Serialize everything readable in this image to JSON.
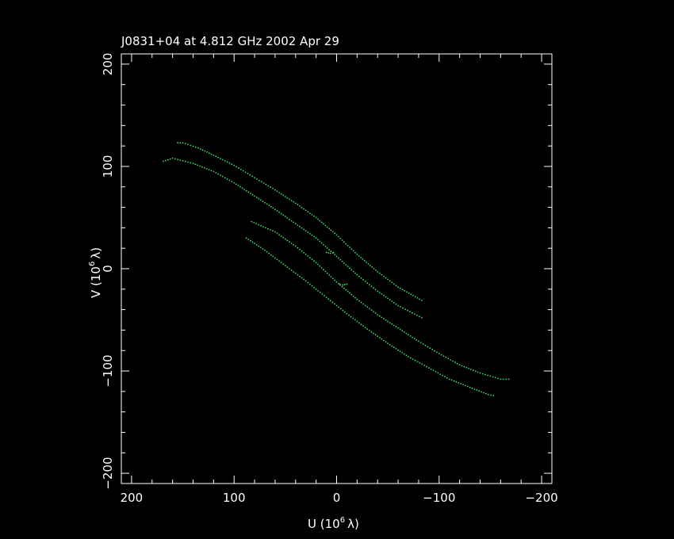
{
  "chart_data": {
    "type": "scatter",
    "title": "J0831+04 at 4.812 GHz 2002 Apr 29",
    "xlabel": "U (10",
    "xlabel_unit": "λ)",
    "ylabel": "V (10",
    "ylabel_unit": "λ)",
    "exponent": "6",
    "xlim": [
      210,
      -210
    ],
    "ylim": [
      -210,
      210
    ],
    "x_ticks": [
      200,
      100,
      0,
      -100,
      -200
    ],
    "y_ticks": [
      -200,
      -100,
      0,
      100,
      200
    ],
    "x_tick_labels": [
      "200",
      "100",
      "0",
      "−100",
      "−200"
    ],
    "y_tick_labels": [
      "−200",
      "−100",
      "0",
      "100",
      "200"
    ],
    "point_color": "#3ddc6a",
    "frame_color": "#ffffff",
    "background": "#000000",
    "series": [
      {
        "points": [
          [
            155,
            123
          ],
          [
            150,
            123
          ],
          [
            135,
            118
          ],
          [
            120,
            111
          ],
          [
            100,
            101
          ],
          [
            80,
            89
          ],
          [
            60,
            77
          ],
          [
            40,
            64
          ],
          [
            20,
            50
          ],
          [
            0,
            33
          ],
          [
            -20,
            14
          ],
          [
            -40,
            -3
          ],
          [
            -60,
            -18
          ],
          [
            -83,
            -31
          ]
        ]
      },
      {
        "points": [
          [
            169,
            105
          ],
          [
            160,
            108
          ],
          [
            140,
            103
          ],
          [
            120,
            95
          ],
          [
            100,
            84
          ],
          [
            80,
            71
          ],
          [
            60,
            58
          ],
          [
            40,
            44
          ],
          [
            20,
            30
          ],
          [
            0,
            12
          ],
          [
            -20,
            -6
          ],
          [
            -40,
            -22
          ],
          [
            -60,
            -36
          ],
          [
            -83,
            -48
          ]
        ]
      },
      {
        "points": [
          [
            -168,
            -108
          ],
          [
            -160,
            -108
          ],
          [
            -140,
            -102
          ],
          [
            -120,
            -94
          ],
          [
            -100,
            -83
          ],
          [
            -80,
            -71
          ],
          [
            -60,
            -58
          ],
          [
            -40,
            -45
          ],
          [
            -20,
            -30
          ],
          [
            0,
            -13
          ],
          [
            20,
            6
          ],
          [
            40,
            22
          ],
          [
            60,
            36
          ],
          [
            83,
            46
          ]
        ]
      },
      {
        "points": [
          [
            -153,
            -124
          ],
          [
            -148,
            -123
          ],
          [
            -130,
            -116
          ],
          [
            -110,
            -108
          ],
          [
            -90,
            -97
          ],
          [
            -70,
            -86
          ],
          [
            -50,
            -73
          ],
          [
            -30,
            -59
          ],
          [
            -10,
            -44
          ],
          [
            10,
            -28
          ],
          [
            30,
            -12
          ],
          [
            50,
            3
          ],
          [
            70,
            18
          ],
          [
            88,
            30
          ]
        ]
      },
      {
        "points": [
          [
            3,
            16
          ],
          [
            6,
            15
          ],
          [
            10,
            16
          ]
        ]
      },
      {
        "points": [
          [
            -10,
            -15
          ],
          [
            -6,
            -16
          ],
          [
            -3,
            -15
          ]
        ]
      }
    ]
  }
}
